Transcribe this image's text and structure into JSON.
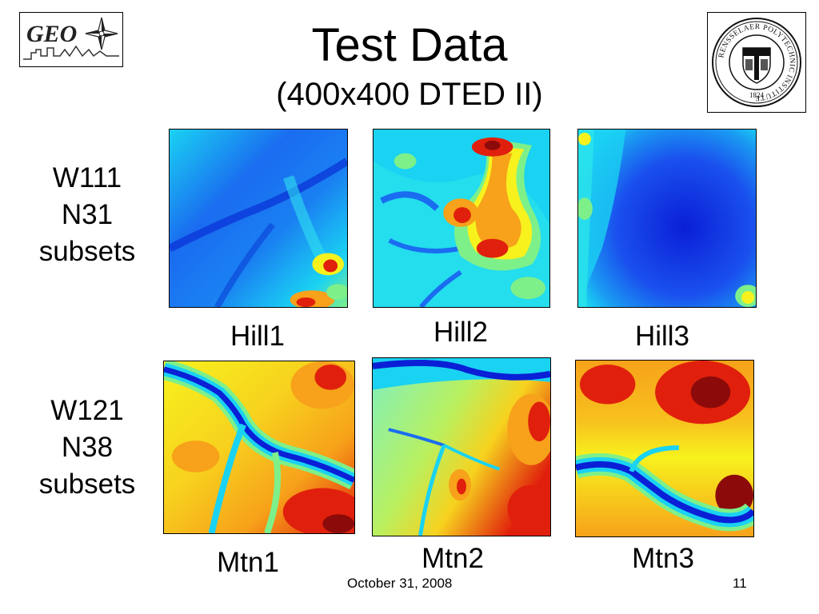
{
  "logos": {
    "geo_text": "GEO",
    "rpi_ring_text": "RENSSELAER POLYTECHNIC INSTITUTE",
    "rpi_year": "1824"
  },
  "title": "Test Data",
  "subtitle": "(400x400 DTED II)",
  "rows": [
    {
      "label_lines": [
        "W111",
        "N31",
        "subsets"
      ]
    },
    {
      "label_lines": [
        "W121",
        "N38",
        "subsets"
      ]
    }
  ],
  "tiles": [
    {
      "label": "Hill1"
    },
    {
      "label": "Hill2"
    },
    {
      "label": "Hill3"
    },
    {
      "label": "Mtn1"
    },
    {
      "label": "Mtn2"
    },
    {
      "label": "Mtn3"
    }
  ],
  "footer": {
    "date": "October 31, 2008",
    "page": "11"
  },
  "colors": {
    "jet_deep_blue": "#0a1fd6",
    "jet_blue": "#1a6cf0",
    "jet_cyan": "#1ad2f2",
    "jet_green": "#7ef08a",
    "jet_yellow": "#f7f21e",
    "jet_orange": "#f7a21a",
    "jet_red": "#e0200c",
    "jet_dark_red": "#8c0a0a"
  }
}
